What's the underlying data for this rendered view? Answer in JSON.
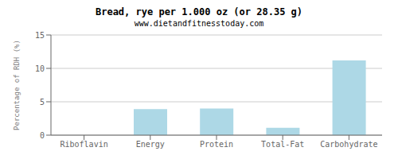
{
  "chart_data": {
    "type": "bar",
    "title": "Bread, rye per 1.000 oz (or 28.35 g)",
    "subtitle": "www.dietandfitnesstoday.com",
    "categories": [
      "Riboflavin",
      "Energy",
      "Protein",
      "Total-Fat",
      "Carbohydrate"
    ],
    "values": [
      0.0,
      3.9,
      4.0,
      1.1,
      11.2
    ],
    "color": "#add8e6",
    "ylabel": "Percentage of RDH (%)",
    "ylim": [
      0,
      15
    ],
    "yticks": [
      0,
      5,
      10,
      15
    ],
    "grid": true
  }
}
